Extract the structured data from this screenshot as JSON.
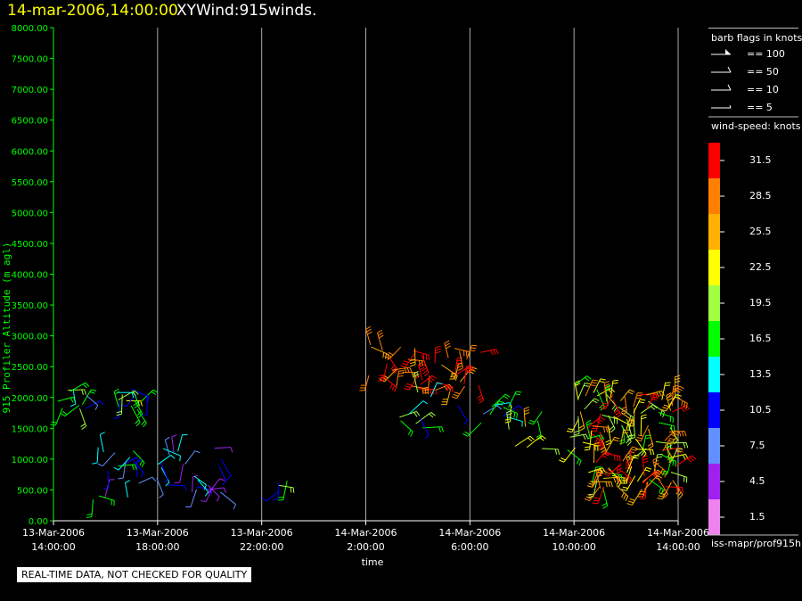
{
  "header": {
    "date_label": "14-mar-2006,14:00:00",
    "product_label": "XYWind:915winds."
  },
  "notice": "REAL-TIME DATA, NOT CHECKED FOR QUALITY",
  "source": "iss-mapr/prof915h",
  "colors": {
    "axis_y": "#00ff00",
    "axis_x": "#ffffff",
    "grid": "#aaaaaa"
  },
  "chart_data": {
    "type": "scatter",
    "title": "XYWind:915winds.",
    "xlabel": "time",
    "ylabel": "915 Profiler Altitude (m agl)",
    "ylim": [
      0,
      8000
    ],
    "xlim_hours": [
      0,
      24
    ],
    "x_tick_labels": [
      [
        "13-Mar-2006",
        "14:00:00"
      ],
      [
        "13-Mar-2006",
        "18:00:00"
      ],
      [
        "13-Mar-2006",
        "22:00:00"
      ],
      [
        "14-Mar-2006",
        "2:00:00"
      ],
      [
        "14-Mar-2006",
        "6:00:00"
      ],
      [
        "14-Mar-2006",
        "10:00:00"
      ],
      [
        "14-Mar-2006",
        "14:00:00"
      ]
    ],
    "y_ticks": [
      0,
      500,
      1000,
      1500,
      2000,
      2500,
      3000,
      3500,
      4000,
      4500,
      5000,
      5500,
      6000,
      6500,
      7000,
      7500,
      8000
    ],
    "y_tick_labels": [
      "0.00",
      "500.00",
      "1000.00",
      "1500.00",
      "2000.00",
      "2500.00",
      "3000.00",
      "3500.00",
      "4000.00",
      "4500.00",
      "5000.00",
      "5500.00",
      "6000.00",
      "6500.00",
      "7000.00",
      "7500.00",
      "8000.00"
    ],
    "grid": "vertical",
    "legend_placement": "right",
    "barb_legend": {
      "title": "barb flags in knots",
      "entries": [
        "== 100",
        "== 50",
        "== 10",
        "== 5"
      ]
    },
    "speed_legend": {
      "title": "wind-speed: knots",
      "labels": [
        "31.5",
        "28.5",
        "25.5",
        "22.5",
        "19.5",
        "16.5",
        "13.5",
        "10.5",
        "7.5",
        "4.5",
        "1.5"
      ],
      "colors": [
        "#ff0000",
        "#ff8000",
        "#ffb000",
        "#ffff00",
        "#a0ff40",
        "#00ff00",
        "#00ffff",
        "#0000ff",
        "#6090ff",
        "#a020f0",
        "#ee82ee"
      ]
    },
    "barb_clusters": [
      {
        "t0": 0.0,
        "t1": 1.5,
        "h0": 1750,
        "h1": 2150,
        "s0": 7,
        "s1": 20,
        "n": 10
      },
      {
        "t0": 2.0,
        "t1": 4.0,
        "h0": 1800,
        "h1": 2150,
        "s0": 8,
        "s1": 22,
        "n": 14
      },
      {
        "t0": 1.5,
        "t1": 6.5,
        "h0": 250,
        "h1": 1200,
        "s0": 3,
        "s1": 18,
        "n": 40
      },
      {
        "t0": 8.0,
        "t1": 9.0,
        "h0": 450,
        "h1": 700,
        "s0": 8,
        "s1": 20,
        "n": 4
      },
      {
        "t0": 12.0,
        "t1": 16.5,
        "h0": 2100,
        "h1": 2900,
        "s0": 26,
        "s1": 34,
        "n": 40
      },
      {
        "t0": 13.0,
        "t1": 14.5,
        "h0": 1400,
        "h1": 2200,
        "s0": 10,
        "s1": 22,
        "n": 8
      },
      {
        "t0": 15.5,
        "t1": 17.5,
        "h0": 1300,
        "h1": 1900,
        "s0": 8,
        "s1": 18,
        "n": 10
      },
      {
        "t0": 17.5,
        "t1": 20.5,
        "h0": 1100,
        "h1": 1900,
        "s0": 14,
        "s1": 26,
        "n": 16
      },
      {
        "t0": 20.0,
        "t1": 21.5,
        "h0": 1700,
        "h1": 2250,
        "s0": 15,
        "s1": 30,
        "n": 10
      },
      {
        "t0": 20.5,
        "t1": 24.0,
        "h0": 500,
        "h1": 2100,
        "s0": 15,
        "s1": 34,
        "n": 110
      }
    ]
  }
}
